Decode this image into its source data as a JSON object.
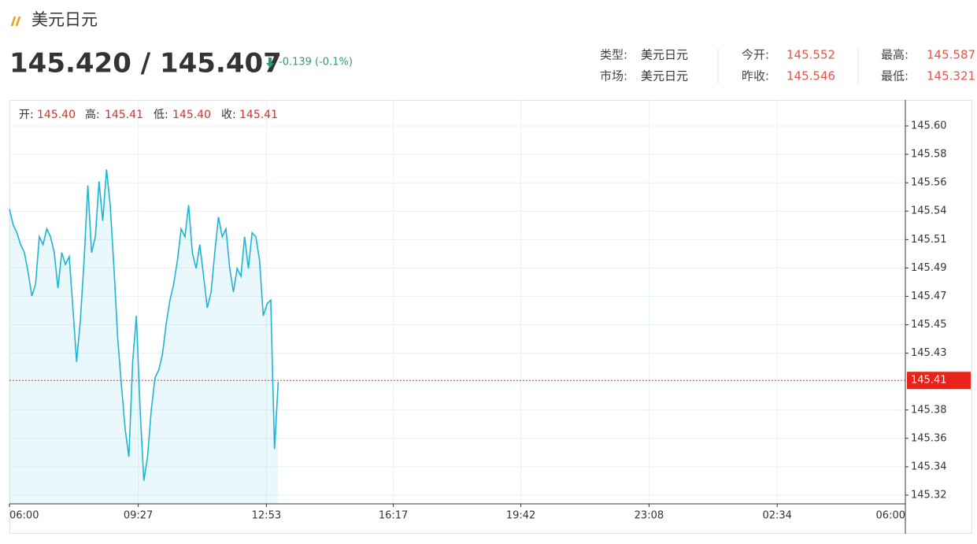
{
  "header": {
    "title": "美元日元",
    "price": "145.420 / 145.407",
    "change": "-0.139 (-0.1%)",
    "info": [
      {
        "label": "类型:",
        "value": "美元日元"
      },
      {
        "label": "今开:",
        "value": "145.552"
      },
      {
        "label": "最高:",
        "value": "145.587"
      },
      {
        "label": "市场:",
        "value": "美元日元"
      },
      {
        "label": "昨收:",
        "value": "145.546"
      },
      {
        "label": "最低:",
        "value": "145.321"
      }
    ]
  },
  "chart_data": {
    "type": "line",
    "ohlc": [
      {
        "label": "开:",
        "value": "145.40"
      },
      {
        "label": "高:",
        "value": "145.41"
      },
      {
        "label": "低:",
        "value": "145.40"
      },
      {
        "label": "收:",
        "value": "145.41"
      }
    ],
    "x": [
      0,
      6,
      12,
      18,
      24,
      30,
      36,
      42,
      48,
      54,
      60,
      66,
      72,
      78,
      84,
      90,
      96,
      102,
      108,
      114,
      120,
      126,
      132,
      138,
      144,
      150,
      156,
      162,
      168,
      174,
      180,
      186,
      192,
      198,
      204,
      210,
      216,
      222,
      228,
      234,
      240,
      246,
      252,
      258,
      264,
      270,
      276,
      282,
      288,
      294,
      300,
      306,
      312,
      318,
      324,
      330,
      336,
      342,
      348,
      354,
      360,
      366,
      372,
      378,
      384,
      390,
      396,
      402,
      408,
      414,
      420,
      426,
      432
    ],
    "series": [
      {
        "color": "#1fb5d2",
        "values": [
          145.537,
          145.525,
          145.519,
          145.51,
          145.504,
          145.489,
          145.471,
          145.48,
          145.516,
          145.51,
          145.522,
          145.516,
          145.504,
          145.477,
          145.504,
          145.495,
          145.501,
          145.462,
          145.421,
          145.453,
          145.498,
          145.555,
          145.504,
          145.516,
          145.558,
          145.528,
          145.567,
          145.54,
          145.492,
          145.439,
          145.403,
          145.37,
          145.349,
          145.421,
          145.456,
          145.385,
          145.331,
          145.349,
          145.385,
          145.409,
          145.415,
          145.427,
          145.45,
          145.468,
          145.48,
          145.498,
          145.522,
          145.516,
          145.54,
          145.504,
          145.492,
          145.51,
          145.486,
          145.462,
          145.474,
          145.504,
          145.531,
          145.516,
          145.522,
          145.492,
          145.474,
          145.492,
          145.486,
          145.516,
          145.492,
          145.519,
          145.516,
          145.498,
          145.456,
          145.465,
          145.468,
          145.355,
          145.406
        ]
      }
    ],
    "xlim": [
      0,
      1440
    ],
    "xticks": [
      {
        "value": 0,
        "label": "06:00"
      },
      {
        "value": 207,
        "label": "09:27"
      },
      {
        "value": 413,
        "label": "12:53"
      },
      {
        "value": 617,
        "label": "16:17"
      },
      {
        "value": 822,
        "label": "19:42"
      },
      {
        "value": 1028,
        "label": "23:08"
      },
      {
        "value": 1234,
        "label": "02:34"
      },
      {
        "value": 1440,
        "label": "06:00"
      }
    ],
    "ylim": [
      145.3134,
      145.6197
    ],
    "yticks": [
      {
        "value": 145.6,
        "label": "145.60"
      },
      {
        "value": 145.5785,
        "label": "145.58"
      },
      {
        "value": 145.5569,
        "label": "145.56"
      },
      {
        "value": 145.5354,
        "label": "145.54"
      },
      {
        "value": 145.5138,
        "label": "145.51"
      },
      {
        "value": 145.4923,
        "label": "145.49"
      },
      {
        "value": 145.4708,
        "label": "145.47"
      },
      {
        "value": 145.4492,
        "label": "145.45"
      },
      {
        "value": 145.4277,
        "label": "145.43"
      },
      {
        "value": 145.3846,
        "label": "145.38"
      },
      {
        "value": 145.3631,
        "label": "145.36"
      },
      {
        "value": 145.3415,
        "label": "145.34"
      },
      {
        "value": 145.32,
        "label": "145.32"
      }
    ],
    "last_price": {
      "value": 145.407,
      "label": "145.41"
    },
    "grid": true
  }
}
